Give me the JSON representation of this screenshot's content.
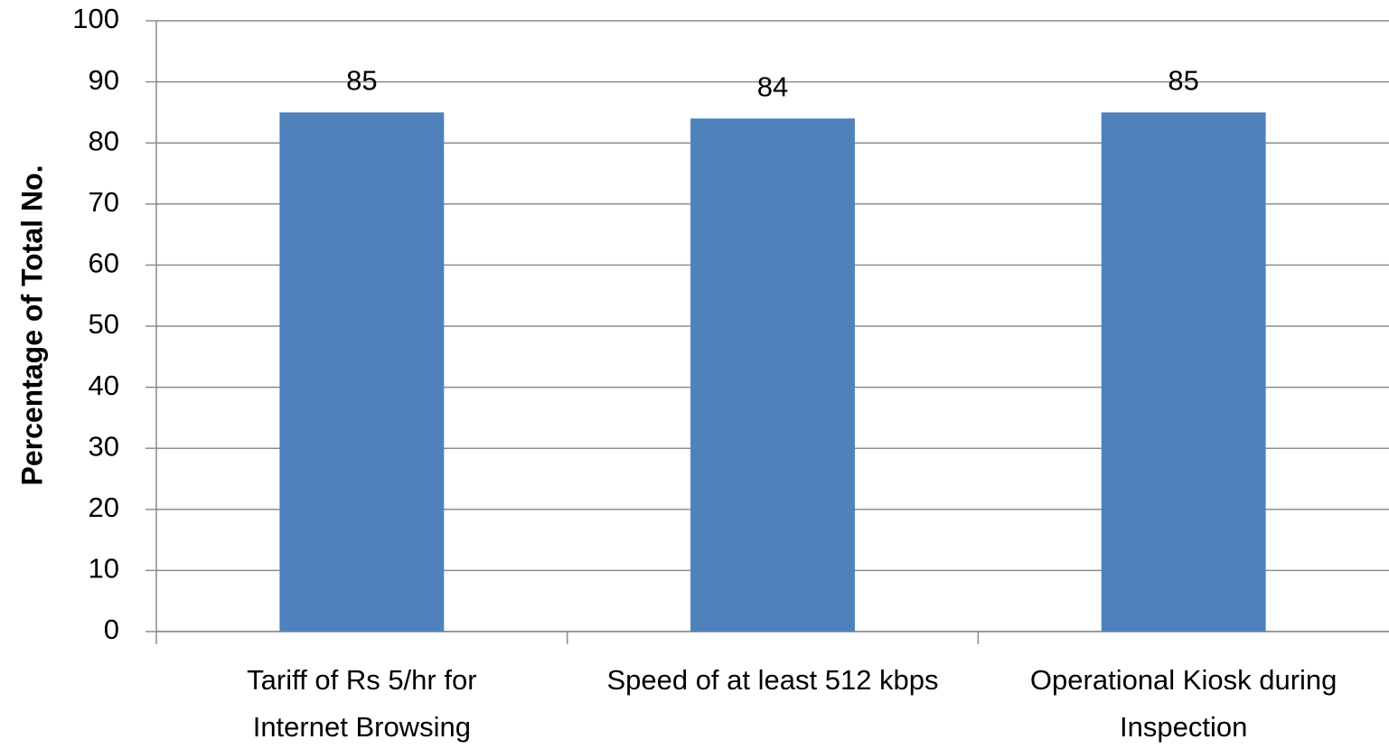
{
  "chart_data": {
    "type": "bar",
    "y_label": "Percentage of Total No.",
    "categories": [
      [
        "Tariff of Rs 5/hr for",
        "Internet Browsing"
      ],
      [
        "Speed of at least 512 kbps"
      ],
      [
        "Operational Kiosk during",
        "Inspection"
      ]
    ],
    "values": [
      85,
      84,
      85
    ],
    "color": "#4f81bd",
    "ylim": [
      0,
      100
    ],
    "yticks": [
      0,
      10,
      20,
      30,
      40,
      50,
      60,
      70,
      80,
      90,
      100
    ],
    "grid": true
  }
}
